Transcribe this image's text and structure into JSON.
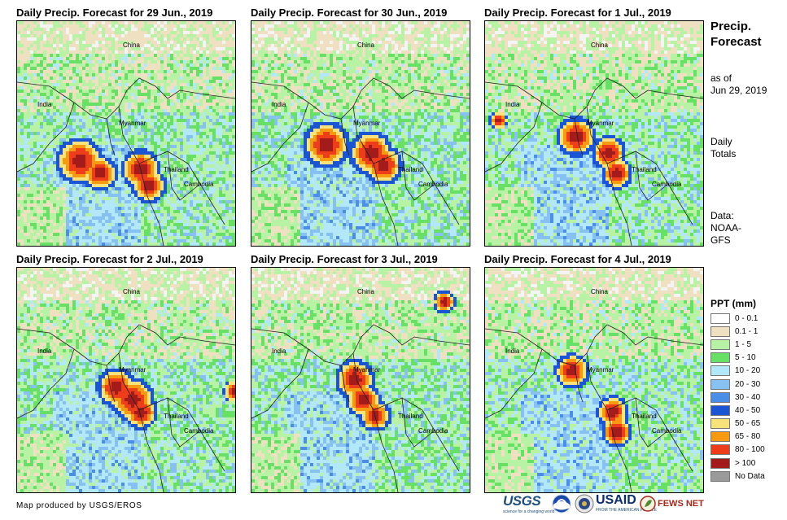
{
  "panels": [
    {
      "title": "Daily Precip. Forecast for 29 Jun., 2019"
    },
    {
      "title": "Daily Precip. Forecast for 30 Jun., 2019"
    },
    {
      "title": "Daily Precip. Forecast for 1 Jul., 2019"
    },
    {
      "title": "Daily Precip. Forecast for 2 Jul., 2019"
    },
    {
      "title": "Daily Precip. Forecast for 3 Jul., 2019"
    },
    {
      "title": "Daily Precip. Forecast for 4 Jul., 2019"
    }
  ],
  "map_labels": {
    "china": "China",
    "india": "India",
    "myanmar": "Myanmar",
    "thailand": "Thailand",
    "cambodia": "Cambodia"
  },
  "sidebar": {
    "title_line1": "Precip.",
    "title_line2": "Forecast",
    "asof_line1": "as of",
    "asof_line2": "Jun 29, 2019",
    "totals_line1": "Daily",
    "totals_line2": "Totals",
    "data_line1": "Data:",
    "data_line2": "NOAA-",
    "data_line3": "GFS"
  },
  "legend": {
    "title": "PPT (mm)",
    "items": [
      {
        "label": "0 - 0.1",
        "color": "#ffffff"
      },
      {
        "label": "0.1 - 1",
        "color": "#efe0c2"
      },
      {
        "label": "1 - 5",
        "color": "#b7f2a5"
      },
      {
        "label": "5 - 10",
        "color": "#67e065"
      },
      {
        "label": "10 - 20",
        "color": "#b3e7fa"
      },
      {
        "label": "20 - 30",
        "color": "#86c1f2"
      },
      {
        "label": "30 - 40",
        "color": "#4a8ee8"
      },
      {
        "label": "40 - 50",
        "color": "#1c55d3"
      },
      {
        "label": "50 - 65",
        "color": "#f8e37a"
      },
      {
        "label": "65 - 80",
        "color": "#f79a12"
      },
      {
        "label": "80 - 100",
        "color": "#ed3d1a"
      },
      {
        "label": "> 100",
        "color": "#a31b1b"
      },
      {
        "label": "No Data",
        "color": "#9a9a9a"
      }
    ]
  },
  "footer": {
    "credit": "Map produced by USGS/EROS"
  },
  "logos": {
    "usgs": "USGS",
    "usgs_tagline": "science for a changing world",
    "usaid": "USAID",
    "usaid_tagline": "FROM THE AMERICAN PEOPLE",
    "fews": "FEWS NET"
  }
}
